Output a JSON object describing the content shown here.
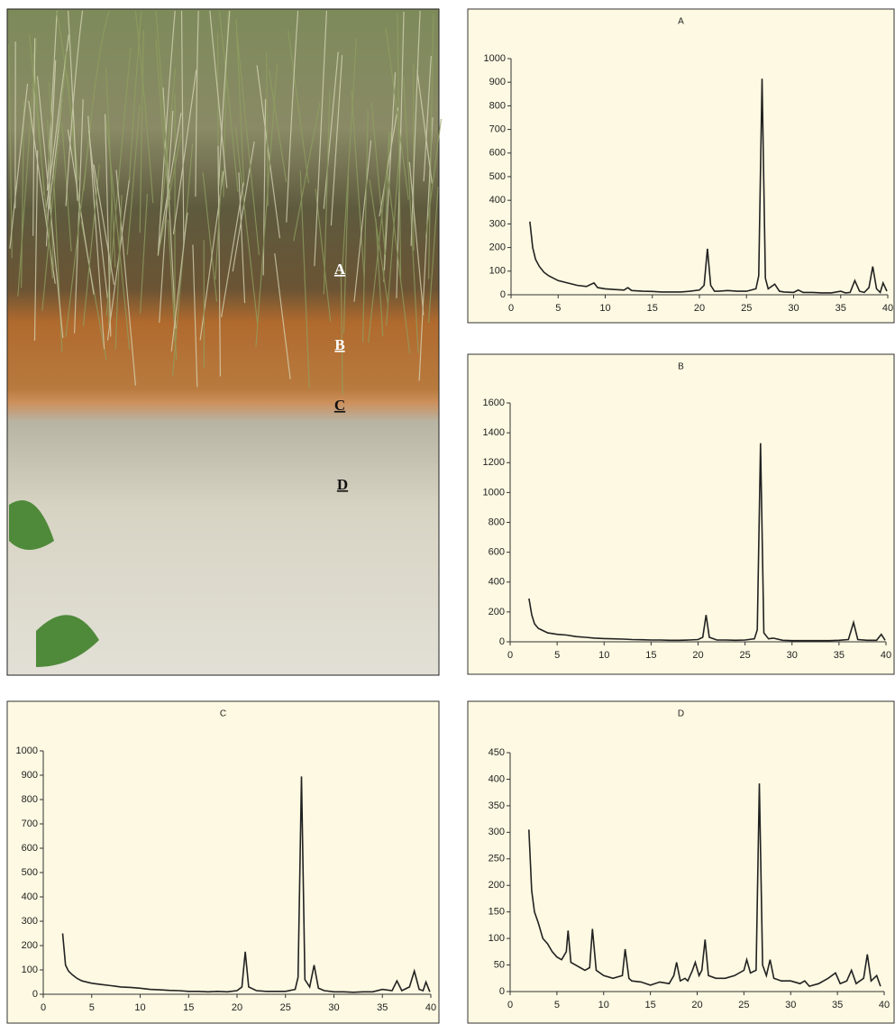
{
  "photo": {
    "labels": [
      "A",
      "B",
      "C",
      "D"
    ]
  },
  "chart_data": [
    {
      "type": "line",
      "title": "A",
      "color": "#222222",
      "xlim": [
        0,
        40
      ],
      "ylim": [
        0,
        1000
      ],
      "xticks": [
        0,
        5,
        10,
        15,
        20,
        25,
        30,
        35,
        40
      ],
      "yticks": [
        0,
        100,
        200,
        300,
        400,
        500,
        600,
        700,
        800,
        900,
        1000
      ],
      "x": [
        2,
        2.3,
        2.6,
        3,
        3.5,
        4,
        5,
        6,
        7,
        8,
        8.8,
        9.2,
        10,
        11,
        12,
        12.4,
        12.8,
        14,
        15,
        16,
        17,
        18,
        19,
        20,
        20.5,
        20.85,
        21.2,
        21.6,
        22,
        23,
        24,
        25,
        26,
        26.3,
        26.65,
        27,
        27.3,
        28,
        28.5,
        29,
        30,
        30.5,
        31,
        32,
        33,
        34,
        35,
        35.5,
        36,
        36.5,
        37,
        37.5,
        38,
        38.4,
        38.8,
        39.2,
        39.5,
        39.9
      ],
      "values": [
        310,
        200,
        150,
        120,
        95,
        80,
        60,
        50,
        40,
        35,
        50,
        30,
        25,
        22,
        20,
        30,
        18,
        15,
        14,
        12,
        12,
        12,
        15,
        20,
        40,
        195,
        40,
        15,
        15,
        18,
        15,
        15,
        25,
        80,
        915,
        70,
        25,
        45,
        15,
        12,
        10,
        20,
        10,
        10,
        8,
        8,
        15,
        8,
        10,
        60,
        15,
        10,
        30,
        120,
        25,
        10,
        50,
        15
      ]
    },
    {
      "type": "line",
      "title": "B",
      "color": "#222222",
      "xlim": [
        0,
        40
      ],
      "ylim": [
        0,
        1600
      ],
      "xticks": [
        0,
        5,
        10,
        15,
        20,
        25,
        30,
        35,
        40
      ],
      "yticks": [
        0,
        200,
        400,
        600,
        800,
        1000,
        1200,
        1400,
        1600
      ],
      "x": [
        2,
        2.3,
        2.6,
        3,
        3.5,
        4,
        5,
        6,
        7,
        8,
        9,
        10,
        11,
        12,
        13,
        14,
        15,
        16,
        17,
        18,
        19,
        20,
        20.5,
        20.85,
        21.2,
        22,
        23,
        24,
        25,
        26,
        26.3,
        26.65,
        27,
        27.5,
        28,
        29,
        30,
        31,
        32,
        33,
        34,
        35,
        36,
        36.55,
        37,
        38,
        39,
        39.5,
        39.9
      ],
      "values": [
        290,
        180,
        120,
        90,
        75,
        60,
        50,
        45,
        35,
        30,
        25,
        22,
        20,
        18,
        15,
        14,
        12,
        12,
        10,
        10,
        12,
        15,
        30,
        180,
        30,
        12,
        12,
        10,
        12,
        20,
        80,
        1330,
        60,
        20,
        25,
        10,
        8,
        8,
        8,
        8,
        8,
        10,
        15,
        130,
        15,
        10,
        10,
        50,
        10
      ]
    },
    {
      "type": "line",
      "title": "C",
      "color": "#222222",
      "xlim": [
        0,
        40
      ],
      "ylim": [
        0,
        1000
      ],
      "xticks": [
        0,
        5,
        10,
        15,
        20,
        25,
        30,
        35,
        40
      ],
      "yticks": [
        0,
        100,
        200,
        300,
        400,
        500,
        600,
        700,
        800,
        900,
        1000
      ],
      "x": [
        2,
        2.3,
        2.6,
        3,
        3.5,
        4,
        5,
        6,
        7,
        8,
        9,
        10,
        11,
        12,
        13,
        14,
        15,
        16,
        17,
        18,
        19,
        20,
        20.5,
        20.85,
        21.2,
        22,
        23,
        24,
        25,
        26,
        26.3,
        26.65,
        27,
        27.5,
        27.95,
        28.4,
        29,
        30,
        31,
        32,
        33,
        34,
        35,
        36,
        36.5,
        37,
        37.8,
        38.3,
        38.8,
        39.2,
        39.5,
        39.9
      ],
      "values": [
        250,
        120,
        95,
        80,
        65,
        55,
        45,
        40,
        35,
        30,
        28,
        25,
        20,
        18,
        16,
        15,
        12,
        12,
        10,
        12,
        10,
        15,
        30,
        175,
        30,
        15,
        12,
        12,
        12,
        20,
        70,
        895,
        60,
        30,
        120,
        25,
        15,
        10,
        10,
        8,
        10,
        10,
        20,
        15,
        55,
        15,
        30,
        95,
        20,
        15,
        50,
        10
      ]
    },
    {
      "type": "line",
      "title": "D",
      "color": "#222222",
      "xlim": [
        0,
        40
      ],
      "ylim": [
        0,
        450
      ],
      "xticks": [
        0,
        5,
        10,
        15,
        20,
        25,
        30,
        35,
        40
      ],
      "yticks": [
        0,
        50,
        100,
        150,
        200,
        250,
        300,
        350,
        400,
        450
      ],
      "x": [
        2,
        2.3,
        2.6,
        3,
        3.5,
        4,
        4.5,
        5,
        5.5,
        6,
        6.2,
        6.5,
        7,
        7.5,
        8,
        8.5,
        8.8,
        9.2,
        10,
        11,
        12,
        12.3,
        12.7,
        13,
        14,
        15,
        16,
        17,
        17.5,
        17.8,
        18.2,
        18.7,
        19,
        19.5,
        19.8,
        20.2,
        20.5,
        20.85,
        21.2,
        22,
        23,
        24,
        25,
        25.3,
        25.7,
        26.3,
        26.65,
        27,
        27.4,
        27.8,
        28.2,
        29,
        30,
        31,
        31.5,
        32,
        33,
        34,
        34.8,
        35.3,
        36,
        36.5,
        37,
        37.8,
        38.2,
        38.6,
        39.2,
        39.6
      ],
      "values": [
        305,
        190,
        150,
        130,
        100,
        90,
        75,
        65,
        60,
        75,
        115,
        55,
        50,
        45,
        40,
        45,
        118,
        40,
        30,
        25,
        30,
        80,
        25,
        20,
        18,
        12,
        18,
        15,
        30,
        55,
        20,
        25,
        20,
        40,
        55,
        30,
        40,
        98,
        30,
        25,
        25,
        30,
        40,
        60,
        35,
        40,
        392,
        50,
        30,
        60,
        25,
        20,
        20,
        15,
        20,
        10,
        15,
        25,
        35,
        15,
        20,
        40,
        15,
        25,
        70,
        20,
        30,
        10
      ]
    }
  ]
}
